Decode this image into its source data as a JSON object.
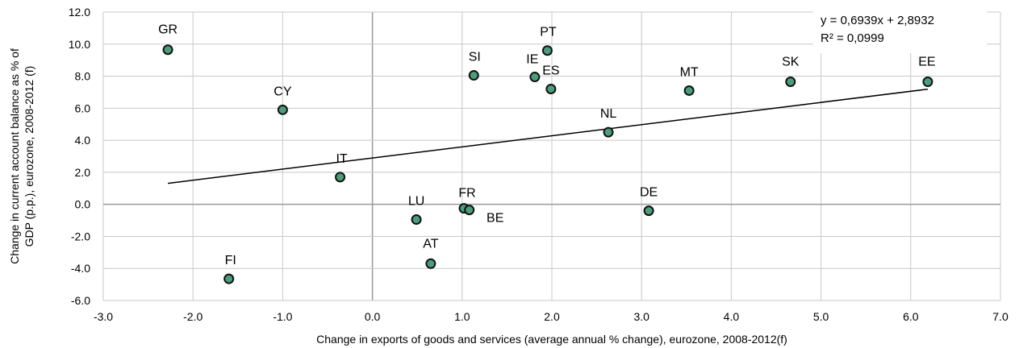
{
  "chart_data": {
    "type": "scatter",
    "title": "",
    "xlabel": "Change in exports of goods and services (average annual % change), eurozone, 2008-2012(f)",
    "ylabel": "Change in current account balance as % of GDP (p.p.), eurozone, 2008-2012 (f)",
    "xlim": [
      -3,
      7
    ],
    "ylim": [
      -6,
      12
    ],
    "x_ticks": [
      "-3.0",
      "-2.0",
      "-1.0",
      "0.0",
      "1.0",
      "2.0",
      "3.0",
      "4.0",
      "5.0",
      "6.0",
      "7.0"
    ],
    "y_ticks": [
      "12.0",
      "10.0",
      "8.0",
      "6.0",
      "4.0",
      "2.0",
      "0.0",
      "-2.0",
      "-4.0",
      "-6.0"
    ],
    "grid": true,
    "marker_color": "#4a9e7c",
    "points": [
      {
        "label": "GR",
        "x": -2.28,
        "y": 9.65
      },
      {
        "label": "CY",
        "x": -1.0,
        "y": 5.9
      },
      {
        "label": "IT",
        "x": -0.36,
        "y": 1.7
      },
      {
        "label": "FI",
        "x": -1.6,
        "y": -4.65
      },
      {
        "label": "LU",
        "x": 0.49,
        "y": -0.95
      },
      {
        "label": "AT",
        "x": 0.65,
        "y": -3.7
      },
      {
        "label": "FR",
        "x": 1.02,
        "y": -0.25
      },
      {
        "label": "BE",
        "x": 1.08,
        "y": -0.35
      },
      {
        "label": "SI",
        "x": 1.13,
        "y": 8.05
      },
      {
        "label": "IE",
        "x": 1.81,
        "y": 7.95
      },
      {
        "label": "PT",
        "x": 1.95,
        "y": 9.6
      },
      {
        "label": "ES",
        "x": 1.99,
        "y": 7.2
      },
      {
        "label": "NL",
        "x": 2.63,
        "y": 4.5
      },
      {
        "label": "DE",
        "x": 3.08,
        "y": -0.4
      },
      {
        "label": "MT",
        "x": 3.53,
        "y": 7.1
      },
      {
        "label": "SK",
        "x": 4.66,
        "y": 7.65
      },
      {
        "label": "EE",
        "x": 6.19,
        "y": 7.65
      }
    ],
    "trendline": {
      "slope": 0.6939,
      "intercept": 2.8932,
      "x_range": [
        -2.28,
        6.19
      ],
      "equation": "y = 0,6939x + 2,8932",
      "r_squared": "R² = 0,0999"
    }
  }
}
